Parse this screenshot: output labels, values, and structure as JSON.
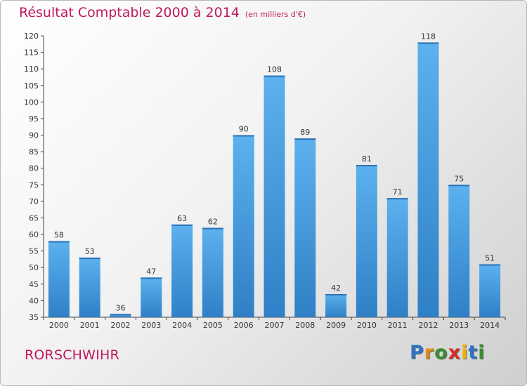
{
  "title": "Résultat Comptable 2000 à 2014",
  "unit": "(en milliers d'€)",
  "commune": "RORSCHWIHR",
  "logo": {
    "letters": [
      "P",
      "r",
      "o",
      "x",
      "i",
      "t",
      "i"
    ],
    "colors": [
      "#2d74c4",
      "#e38a10",
      "#3a8e2e",
      "#d62b2b",
      "#f0b400",
      "#2d74c4",
      "#3a8e2e"
    ]
  },
  "chart_data": {
    "type": "bar",
    "title": "Résultat Comptable 2000 à 2014",
    "subtitle": "(en milliers d'€)",
    "categories": [
      "2000",
      "2001",
      "2002",
      "2003",
      "2004",
      "2005",
      "2006",
      "2007",
      "2008",
      "2009",
      "2010",
      "2011",
      "2012",
      "2013",
      "2014"
    ],
    "values": [
      58,
      53,
      36,
      47,
      63,
      62,
      90,
      108,
      89,
      42,
      81,
      71,
      118,
      75,
      51
    ],
    "ylim": [
      35,
      120
    ],
    "yticks": [
      35,
      40,
      45,
      50,
      55,
      60,
      65,
      70,
      75,
      80,
      85,
      90,
      95,
      100,
      105,
      110,
      115,
      120
    ],
    "grid": false,
    "bar_color": "#3e94d8",
    "bar_color_dark": "#2a7ec4"
  }
}
